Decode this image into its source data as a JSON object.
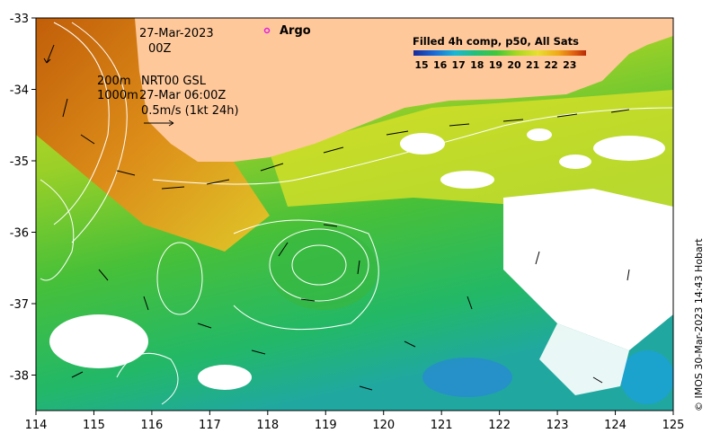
{
  "map": {
    "date_line1": "27-Mar-2023",
    "date_line2": "00Z",
    "depth_200m": "200m",
    "depth_1000m": "1000m",
    "current_product": "NRT00 GSL",
    "current_time": "27-Mar 06:00Z",
    "scale_arrow": "0.5m/s (1kt 24h)",
    "legend_argo": "Argo",
    "sst_title": "Filled 4h comp, p50, All Sats",
    "sst_ticks": [
      "15",
      "16",
      "17",
      "18",
      "19",
      "20",
      "21",
      "22",
      "23"
    ],
    "credit": "© IMOS 30-Mar-2023 14:43 Hobart",
    "lon_ticks": [
      "114",
      "115",
      "116",
      "117",
      "118",
      "119",
      "120",
      "121",
      "122",
      "123",
      "124",
      "125"
    ],
    "lat_ticks": [
      "-33",
      "-34",
      "-35",
      "-36",
      "-37",
      "-38"
    ],
    "colors": {
      "land": "#ffc89a",
      "argo_marker": "#e020e0",
      "sst_colorbar": [
        "#1a2a9a",
        "#1a6ad8",
        "#18b8d8",
        "#22c07a",
        "#3ec83a",
        "#a8d820",
        "#e8e030",
        "#f0a818",
        "#e06010",
        "#b82a08"
      ]
    }
  }
}
